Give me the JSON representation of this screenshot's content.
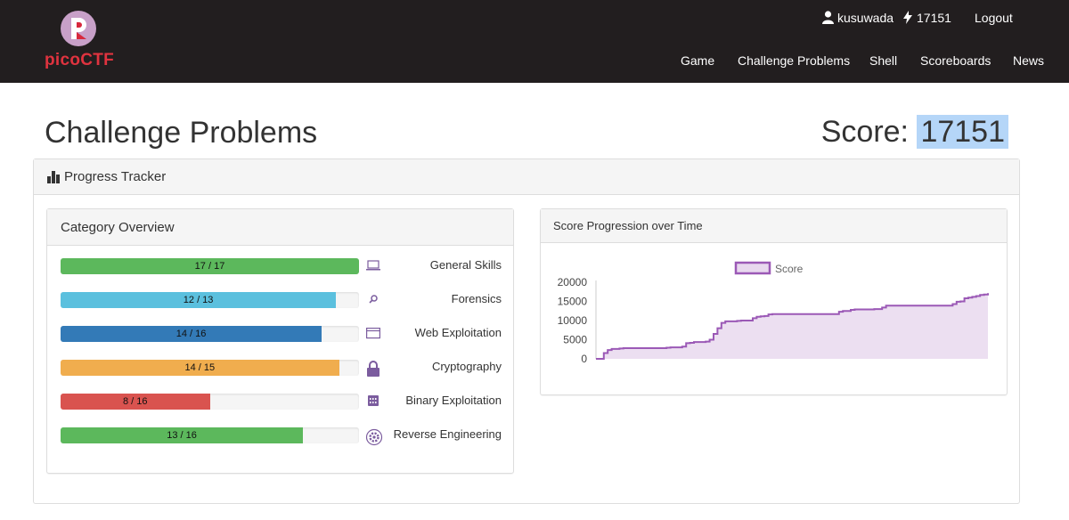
{
  "brand": {
    "name": "picoCTF"
  },
  "nav_top": {
    "username": "kusuwada",
    "points": "17151",
    "logout": "Logout"
  },
  "nav_links": [
    "Game",
    "Challenge Problems",
    "Shell",
    "Scoreboards",
    "News"
  ],
  "page": {
    "title": "Challenge Problems",
    "score_label": "Score:",
    "score_value": "17151"
  },
  "progress": {
    "title": "Progress Tracker",
    "category_title": "Category Overview",
    "categories": [
      {
        "label": "General Skills",
        "text": "17 / 17",
        "solved": 17,
        "total": 17,
        "color": "#5cb85c",
        "icon": "laptop-icon"
      },
      {
        "label": "Forensics",
        "text": "12 / 13",
        "solved": 12,
        "total": 13,
        "color": "#5bc0de",
        "icon": "search-icon"
      },
      {
        "label": "Web Exploitation",
        "text": "14 / 16",
        "solved": 14,
        "total": 16,
        "color": "#337ab7",
        "icon": "browser-window-icon"
      },
      {
        "label": "Cryptography",
        "text": "14 / 15",
        "solved": 14,
        "total": 15,
        "color": "#f0ad4e",
        "icon": "lock-icon"
      },
      {
        "label": "Binary Exploitation",
        "text": "8 / 16",
        "solved": 8,
        "total": 16,
        "color": "#d9534f",
        "icon": "binary-chip-icon"
      },
      {
        "label": "Reverse Engineering",
        "text": "13 / 16",
        "solved": 13,
        "total": 16,
        "color": "#5cb85c",
        "icon": "gear-icon"
      }
    ]
  },
  "chart_data": {
    "type": "area",
    "title": "Score Progression over Time",
    "series": [
      {
        "name": "Score",
        "color": "#9b59b6",
        "values": [
          0,
          0,
          1500,
          2300,
          2600,
          2600,
          2700,
          2800,
          2800,
          2800,
          2800,
          2800,
          2800,
          2800,
          2800,
          2800,
          2800,
          2800,
          2900,
          3000,
          3000,
          3000,
          3200,
          4100,
          4200,
          4400,
          4400,
          4400,
          4500,
          5000,
          6500,
          8000,
          9400,
          9800,
          9800,
          9800,
          9900,
          10000,
          10000,
          10000,
          10600,
          11000,
          11100,
          11200,
          11600,
          11700,
          11700,
          11700,
          11700,
          11700,
          11700,
          11700,
          11700,
          11700,
          11700,
          11700,
          11700,
          11700,
          11700,
          11700,
          11700,
          11700,
          12300,
          12500,
          12500,
          12800,
          12900,
          12900,
          12900,
          12900,
          12900,
          13000,
          13000,
          13400,
          13900,
          13900,
          13900,
          13900,
          13900,
          13900,
          13900,
          13900,
          13900,
          13900,
          13900,
          13900,
          13900,
          13900,
          13900,
          13900,
          13900,
          14300,
          14900,
          15000,
          15800,
          16000,
          16200,
          16400,
          16700,
          16800,
          17151
        ]
      }
    ],
    "y_ticks": [
      "20000",
      "15000",
      "10000",
      "5000",
      "0"
    ],
    "ylim": [
      0,
      20000
    ],
    "legend": "top-center",
    "grid": false
  }
}
